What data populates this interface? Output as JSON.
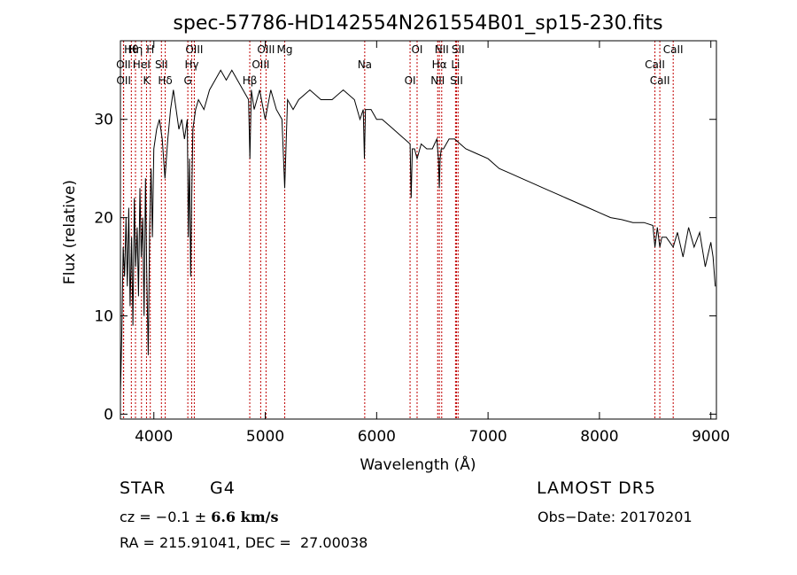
{
  "chart_data": {
    "type": "line",
    "title": "spec-57786-HD142554N261554B01_sp15-230.fits",
    "xlabel": "Wavelength (Å)",
    "ylabel": "Flux (relative)",
    "xlim": [
      3700,
      9050
    ],
    "ylim": [
      -0.5,
      38
    ],
    "xticks": [
      4000,
      5000,
      6000,
      7000,
      8000,
      9000
    ],
    "yticks": [
      0,
      10,
      20,
      30
    ],
    "grid": false,
    "series": [
      {
        "x": [
          3700,
          3712,
          3725,
          3737,
          3750,
          3762,
          3775,
          3787,
          3800,
          3812,
          3825,
          3837,
          3850,
          3862,
          3875,
          3887,
          3900,
          3912,
          3925,
          3937,
          3950,
          3962,
          3975,
          3987,
          4000,
          4025,
          4050,
          4075,
          4100,
          4125,
          4150,
          4175,
          4200,
          4225,
          4250,
          4275,
          4300,
          4310,
          4320,
          4330,
          4340,
          4350,
          4375,
          4400,
          4450,
          4500,
          4550,
          4600,
          4650,
          4700,
          4750,
          4800,
          4850,
          4862,
          4875,
          4900,
          4950,
          5000,
          5050,
          5100,
          5150,
          5175,
          5200,
          5250,
          5300,
          5400,
          5500,
          5600,
          5700,
          5800,
          5850,
          5880,
          5890,
          5900,
          5950,
          6000,
          6050,
          6100,
          6150,
          6200,
          6250,
          6300,
          6310,
          6320,
          6340,
          6363,
          6400,
          6450,
          6500,
          6520,
          6540,
          6555,
          6563,
          6570,
          6580,
          6600,
          6650,
          6700,
          6750,
          6800,
          6900,
          7000,
          7100,
          7200,
          7300,
          7400,
          7500,
          7600,
          7700,
          7800,
          7900,
          8000,
          8100,
          8200,
          8300,
          8400,
          8480,
          8498,
          8520,
          8542,
          8560,
          8600,
          8662,
          8700,
          8750,
          8800,
          8850,
          8900,
          8950,
          9000,
          9020,
          9040
        ],
        "values": [
          2,
          8,
          17,
          14,
          20,
          13,
          21,
          11,
          18,
          9,
          22,
          15,
          19,
          12,
          23,
          16,
          20,
          10,
          24,
          14,
          6,
          19,
          25,
          18,
          27,
          29,
          30,
          28,
          24,
          28,
          31,
          33,
          31,
          29,
          30,
          28,
          30,
          18,
          26,
          14,
          22,
          29,
          31,
          32,
          31,
          33,
          34,
          35,
          34,
          35,
          34,
          33,
          32,
          26,
          33,
          31,
          33,
          30,
          33,
          31,
          30,
          23,
          32,
          31,
          32,
          33,
          32,
          32,
          33,
          32,
          30,
          31,
          26,
          31,
          31,
          30,
          30,
          29.5,
          29,
          28.5,
          28,
          27.5,
          22,
          27,
          27,
          26,
          27.5,
          27,
          27,
          27.5,
          28,
          26,
          23,
          26,
          27,
          27,
          28,
          28,
          27.5,
          27,
          26.5,
          26,
          25,
          24.5,
          24,
          23.5,
          23,
          22.5,
          22,
          21.5,
          21,
          20.5,
          20,
          19.8,
          19.5,
          19.5,
          19.2,
          17,
          19,
          17,
          18,
          18,
          17,
          18.5,
          16,
          19,
          17,
          18.5,
          15,
          17.5,
          16,
          13
        ]
      }
    ],
    "lines": [
      {
        "name": "Hθ",
        "x": 3798
      },
      {
        "name": "OII",
        "x": 3727
      },
      {
        "name": "OII",
        "x": 3729
      },
      {
        "name": "Hη",
        "x": 3835
      },
      {
        "name": "HeI",
        "x": 3889
      },
      {
        "name": "K",
        "x": 3934
      },
      {
        "name": "H",
        "x": 3968
      },
      {
        "name": "SII",
        "x": 4068
      },
      {
        "name": "Hδ",
        "x": 4102
      },
      {
        "name": "OIII",
        "x": 4363
      },
      {
        "name": "Hγ",
        "x": 4340
      },
      {
        "name": "G",
        "x": 4305
      },
      {
        "name": "OIII",
        "x": 5007
      },
      {
        "name": "OIII",
        "x": 4959
      },
      {
        "name": "Hβ",
        "x": 4861
      },
      {
        "name": "Mg",
        "x": 5175
      },
      {
        "name": "Na",
        "x": 5893
      },
      {
        "name": "OI",
        "x": 6300
      },
      {
        "name": "OI",
        "x": 6363
      },
      {
        "name": "Hα",
        "x": 6563
      },
      {
        "name": "NII",
        "x": 6548
      },
      {
        "name": "NII",
        "x": 6584
      },
      {
        "name": "Li",
        "x": 6708
      },
      {
        "name": "SII",
        "x": 6717
      },
      {
        "name": "SII",
        "x": 6731
      },
      {
        "name": "CaII",
        "x": 8498
      },
      {
        "name": "CaII",
        "x": 8542
      },
      {
        "name": "CaII",
        "x": 8662
      }
    ]
  },
  "info": {
    "object_class": "STAR",
    "subclass": "G4",
    "survey": "LAMOST DR5",
    "velocity_prefix": "cz = ",
    "velocity_value": "−0.1",
    "velocity_pm": " ± ",
    "velocity_error": "6.6 km/s",
    "obs_date": "Obs−Date: 20170201",
    "coords": "RA = 215.91041, DEC =  27.00038"
  },
  "colors": {
    "line_marker": "#c00000",
    "spectrum": "#000000",
    "axes": "#000000"
  }
}
